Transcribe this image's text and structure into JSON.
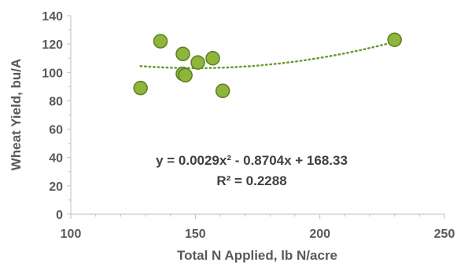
{
  "chart_data": {
    "type": "scatter",
    "xlabel": "Total N Applied, lb N/acre",
    "ylabel": "Wheat Yield, bu/A",
    "xlim": [
      100,
      250
    ],
    "ylim": [
      0,
      140
    ],
    "x_ticks": [
      100,
      150,
      200,
      250
    ],
    "y_ticks": [
      0,
      20,
      40,
      60,
      80,
      100,
      120,
      140
    ],
    "grid": false,
    "points": [
      {
        "x": 128,
        "y": 89
      },
      {
        "x": 136,
        "y": 122
      },
      {
        "x": 145,
        "y": 113
      },
      {
        "x": 145,
        "y": 99
      },
      {
        "x": 146,
        "y": 98
      },
      {
        "x": 151,
        "y": 107
      },
      {
        "x": 157,
        "y": 110
      },
      {
        "x": 161,
        "y": 87
      },
      {
        "x": 230,
        "y": 123
      }
    ],
    "trendline": {
      "type": "polynomial",
      "order": 2,
      "coefficients": [
        0.0029,
        -0.8704,
        168.33
      ],
      "x_range": [
        128,
        230
      ],
      "equation_text": "y = 0.0029x² - 0.8704x + 168.33",
      "r2_text": "R² = 0.2288"
    },
    "colors": {
      "marker_fill": "#8fb53a",
      "marker_stroke": "#5b7f24",
      "trendline": "#6e9a2d",
      "axis": "#bfbfbf"
    }
  }
}
